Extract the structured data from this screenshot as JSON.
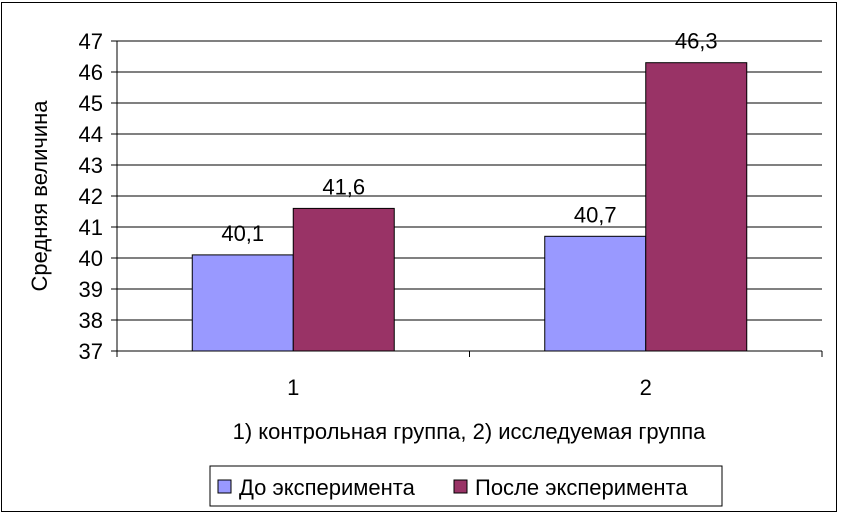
{
  "chart_data": {
    "type": "bar",
    "categories": [
      "1",
      "2"
    ],
    "series": [
      {
        "name": "До эксперимента",
        "values": [
          40.1,
          40.7
        ],
        "labels": [
          "40,1",
          "40,7"
        ],
        "color": "#9999ff"
      },
      {
        "name": "После эксперимента",
        "values": [
          41.6,
          46.3
        ],
        "labels": [
          "41,6",
          "46,3"
        ],
        "color": "#993366"
      }
    ],
    "xlabel": "1) контрольная группа, 2) исследуемая группа",
    "ylabel": "Средняя величина",
    "ylim": [
      37,
      47
    ],
    "yticks": [
      37,
      38,
      39,
      40,
      41,
      42,
      43,
      44,
      45,
      46,
      47
    ],
    "grid": true,
    "legend": "bottom"
  }
}
